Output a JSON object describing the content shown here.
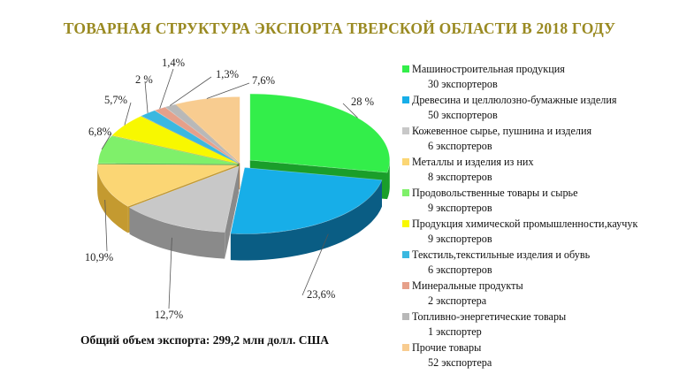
{
  "title": "ТОВАРНАЯ СТРУКТУРА  ЭКСПОРТА ТВЕРСКОЙ ОБЛАСТИ В 2018 ГОДУ",
  "total_label": "Общий объем экспорта:  299,2 млн долл. США",
  "chart_data": {
    "type": "pie",
    "style": "3d-exploded",
    "series": [
      {
        "name": "Машиностроительная  продукция",
        "value": 28,
        "label": "28 %",
        "count_label": "30 экспортеров",
        "color": "#33ee4a",
        "side": "#1a9e2a"
      },
      {
        "name": "Древесина и целлюлозно-бумажные изделия",
        "value": 23.6,
        "label": "23,6%",
        "count_label": "50 экспортеров",
        "color": "#17aee8",
        "side": "#0a5d84"
      },
      {
        "name": "Кожевенное сырье, пушнина и изделия",
        "value": 12.7,
        "label": "12,7%",
        "count_label": "6 экспортеров",
        "color": "#c8c8c8",
        "side": "#8a8a8a"
      },
      {
        "name": "Металлы и изделия из них",
        "value": 10.9,
        "label": "10,9%",
        "count_label": "8 экспортеров",
        "color": "#fbd674",
        "side": "#c49a30"
      },
      {
        "name": "Продовольственные товары и сырье",
        "value": 6.8,
        "label": "6,8%",
        "count_label": "9 экспортеров",
        "color": "#7ff06a",
        "side": "#3f9e30"
      },
      {
        "name": "Продукция химической промышленности,каучук",
        "value": 5.7,
        "label": "5,7%",
        "count_label": "9 экспортеров",
        "color": "#f8f800",
        "side": "#a8a800"
      },
      {
        "name": "Текстиль,текстильные  изделия и обувь",
        "value": 2.0,
        "label": "2 %",
        "count_label": "6 экспортеров",
        "color": "#3ab8e0",
        "side": "#1a6a8a"
      },
      {
        "name": "Минеральные продукты",
        "value": 1.4,
        "label": "1,4%",
        "count_label": "2 экспортера",
        "color": "#e6a08a",
        "side": "#a05a44"
      },
      {
        "name": "Топливно-энергетические  товары",
        "value": 1.3,
        "label": "1,3%",
        "count_label": "1 экспортер",
        "color": "#b8b8b8",
        "side": "#707070"
      },
      {
        "name": "Прочие товары",
        "value": 7.6,
        "label": "7,6%",
        "count_label": "52 экспортера",
        "color": "#f8cc90",
        "side": "#c09050"
      }
    ]
  }
}
